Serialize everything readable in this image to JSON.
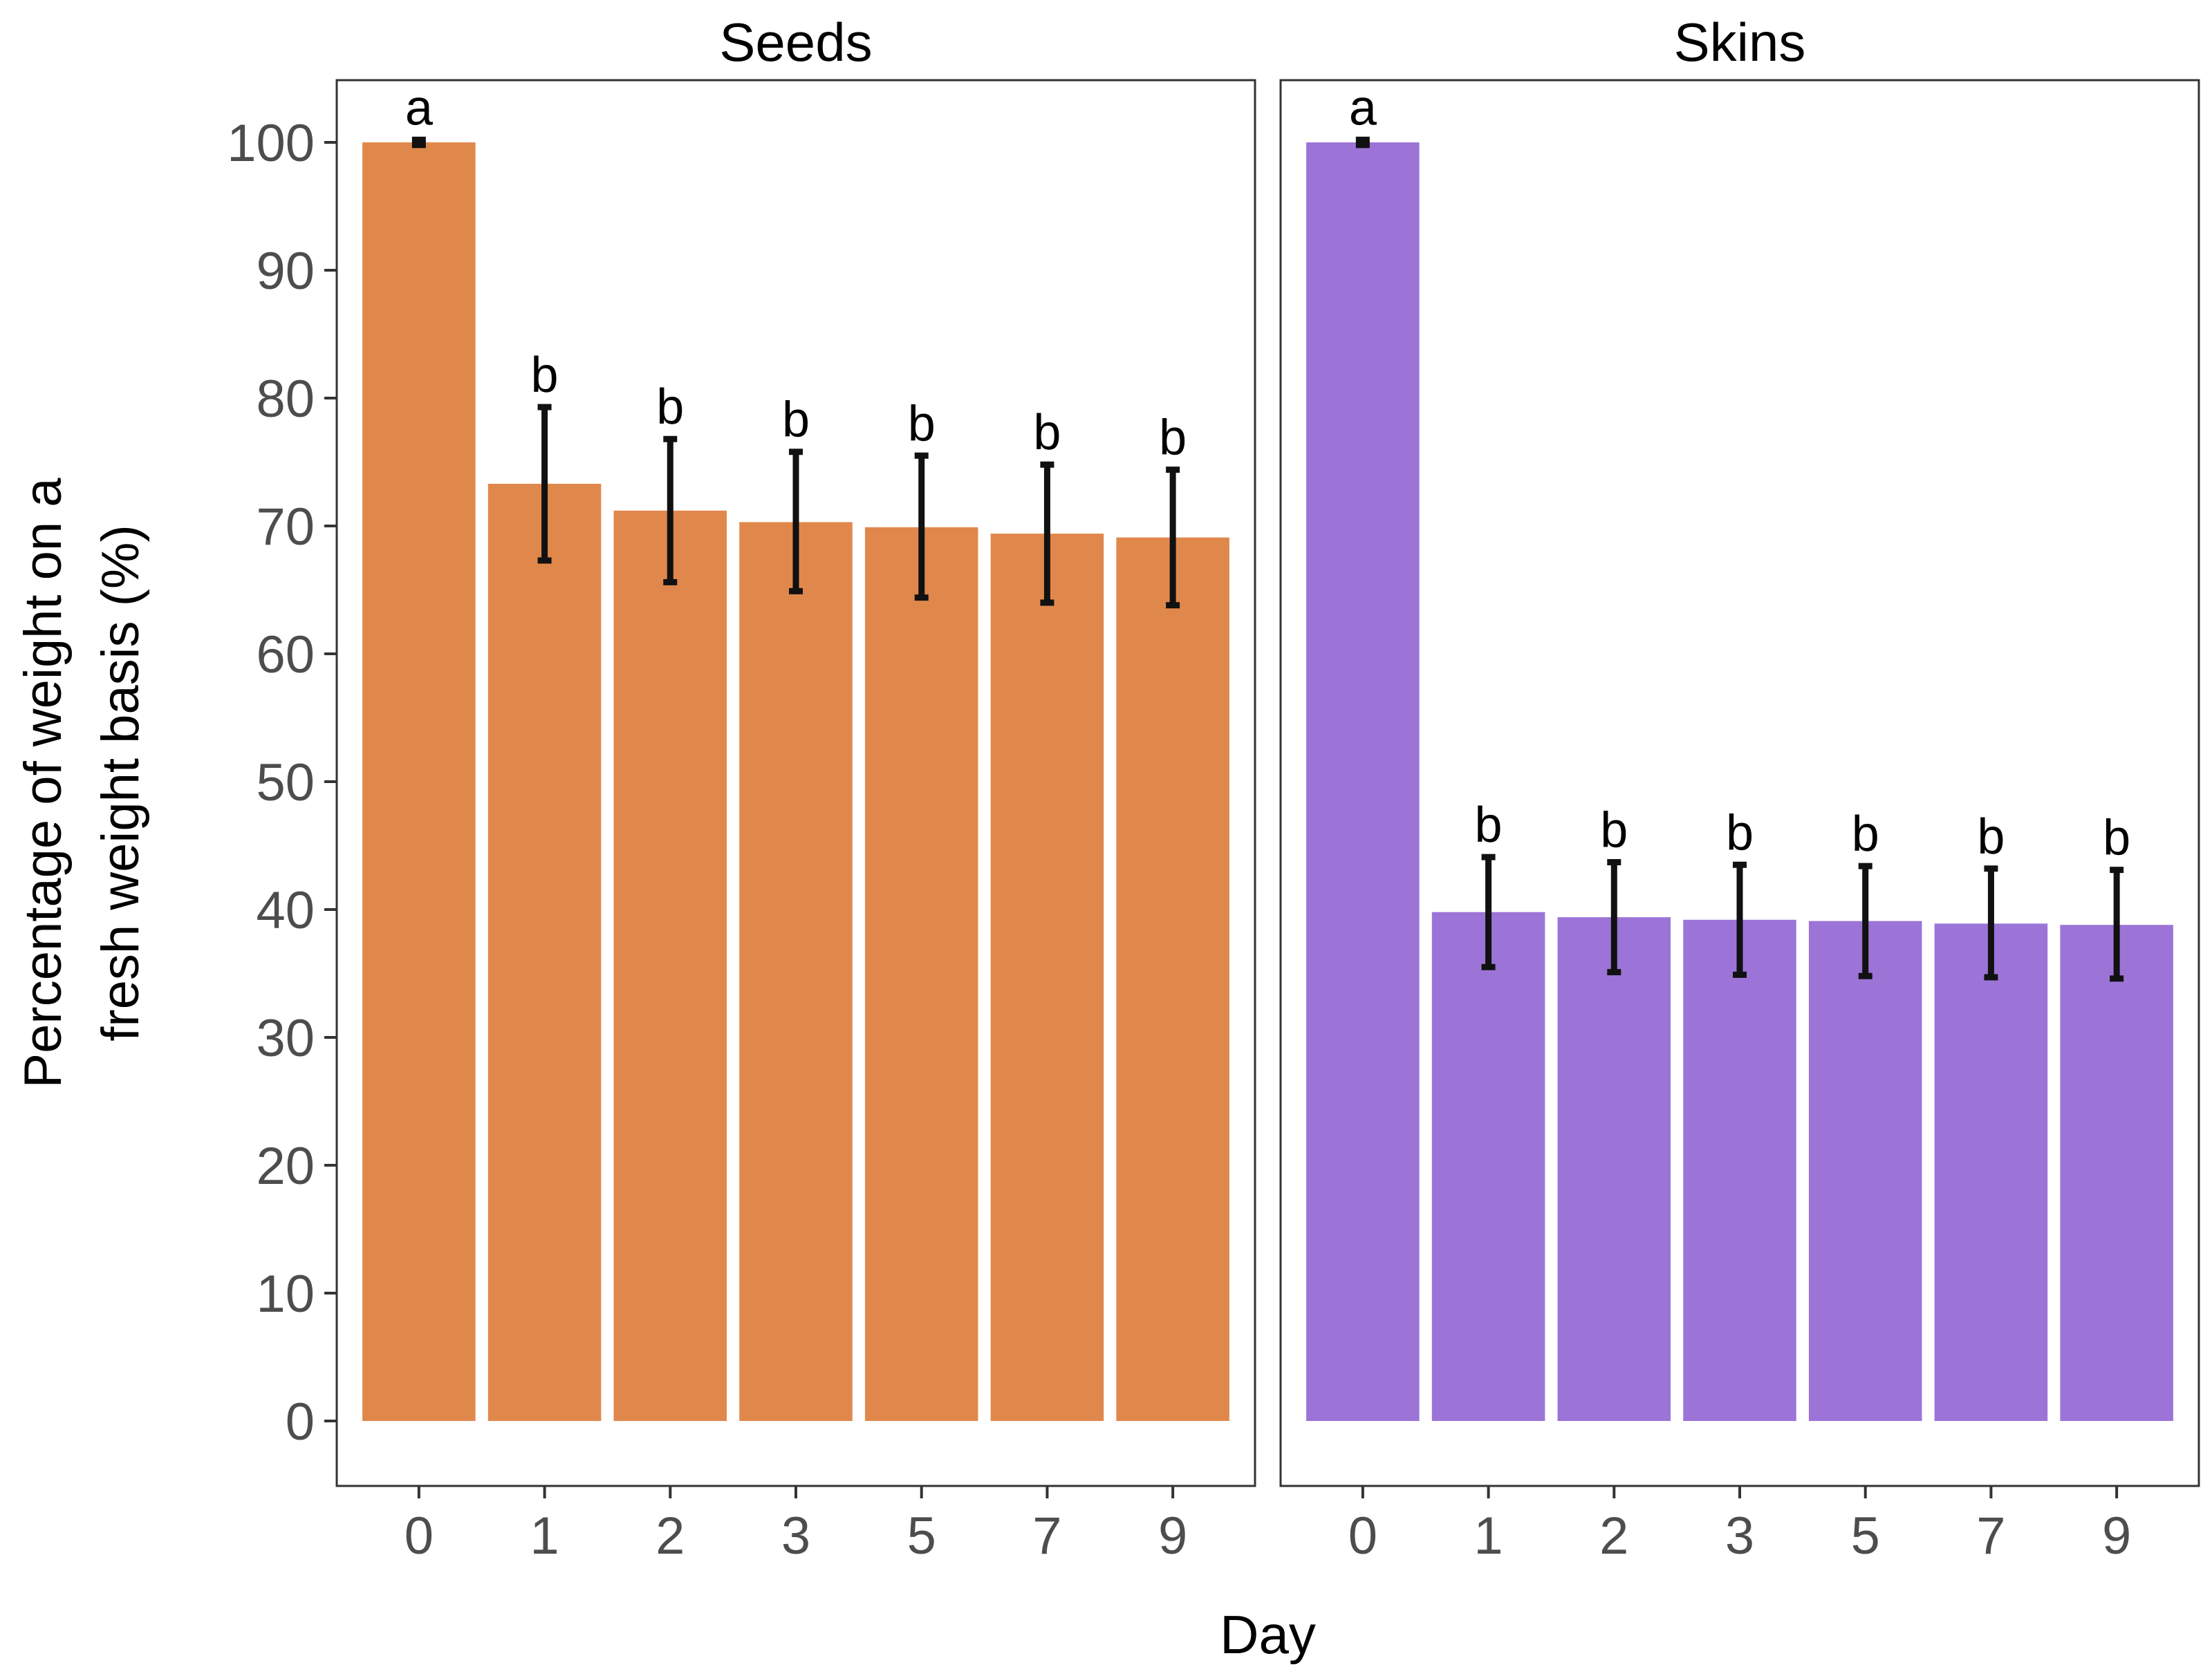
{
  "chart_data": {
    "type": "bar",
    "ylabel_lines": [
      "Percentage of weight on a",
      "fresh weight basis (%)"
    ],
    "xlabel": "Day",
    "ylim": [
      -5,
      105
    ],
    "yticks": [
      0,
      10,
      20,
      30,
      40,
      50,
      60,
      70,
      80,
      90,
      100
    ],
    "categories": [
      "0",
      "1",
      "2",
      "3",
      "5",
      "7",
      "9"
    ],
    "grid": false,
    "panels": [
      {
        "title": "Seeds",
        "color": "#E0884C",
        "values": [
          100,
          73.3,
          71.2,
          70.3,
          69.9,
          69.4,
          69.1
        ],
        "err_low": [
          99.8,
          67.3,
          65.6,
          64.9,
          64.4,
          64.0,
          63.8
        ],
        "err_high": [
          100.2,
          79.3,
          76.8,
          75.8,
          75.5,
          74.8,
          74.4
        ],
        "labels": [
          "a",
          "b",
          "b",
          "b",
          "b",
          "b",
          "b"
        ]
      },
      {
        "title": "Skins",
        "color": "#9C74D8",
        "values": [
          100,
          39.8,
          39.4,
          39.2,
          39.1,
          38.9,
          38.8
        ],
        "err_low": [
          99.8,
          35.5,
          35.1,
          34.9,
          34.8,
          34.7,
          34.6
        ],
        "err_high": [
          100.2,
          44.1,
          43.7,
          43.5,
          43.4,
          43.2,
          43.1
        ],
        "labels": [
          "a",
          "b",
          "b",
          "b",
          "b",
          "b",
          "b"
        ]
      }
    ]
  }
}
